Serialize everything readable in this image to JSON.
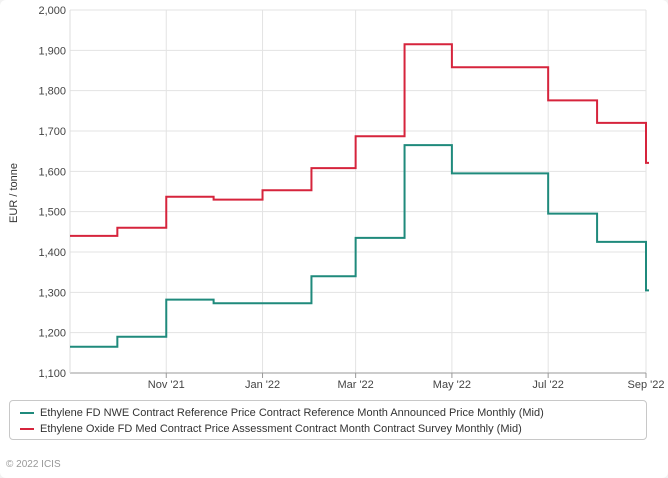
{
  "chart_data": {
    "type": "line",
    "line_shape": "step",
    "ylabel": "EUR / tonne",
    "ylim": [
      1100,
      2000
    ],
    "y_ticks": [
      1100,
      1200,
      1300,
      1400,
      1500,
      1600,
      1700,
      1800,
      1900,
      2000
    ],
    "y_tick_labels": [
      "1,100",
      "1,200",
      "1,300",
      "1,400",
      "1,500",
      "1,600",
      "1,700",
      "1,800",
      "1,900",
      "2,000"
    ],
    "x_ticks": [
      "2021-11-01",
      "2022-01-01",
      "2022-03-01",
      "2022-05-01",
      "2022-07-01",
      "2022-09-01"
    ],
    "x_tick_labels": [
      "Nov '21",
      "Jan '22",
      "Mar '22",
      "May '22",
      "Jul '22",
      "Sep '22"
    ],
    "xlim": [
      "2021-09-01",
      "2022-09-01"
    ],
    "grid": true,
    "legend_position": "bottom",
    "series": [
      {
        "name": "Ethylene FD NWE Contract Reference Price Contract Reference Month Announced Price Monthly (Mid)",
        "color": "#1f8a7c",
        "points": [
          [
            "2021-09-01",
            1165
          ],
          [
            "2021-10-01",
            1190
          ],
          [
            "2021-11-01",
            1282
          ],
          [
            "2021-12-01",
            1273
          ],
          [
            "2022-01-01",
            1273
          ],
          [
            "2022-02-01",
            1340
          ],
          [
            "2022-03-01",
            1435
          ],
          [
            "2022-04-01",
            1665
          ],
          [
            "2022-05-01",
            1595
          ],
          [
            "2022-06-01",
            1595
          ],
          [
            "2022-07-01",
            1495
          ],
          [
            "2022-08-01",
            1425
          ],
          [
            "2022-09-01",
            1305
          ]
        ]
      },
      {
        "name": "Ethylene Oxide FD Med Contract Price Assessment Contract Month Contract Survey Monthly (Mid)",
        "color": "#d6243c",
        "points": [
          [
            "2021-09-01",
            1440
          ],
          [
            "2021-10-01",
            1460
          ],
          [
            "2021-11-01",
            1537
          ],
          [
            "2021-12-01",
            1530
          ],
          [
            "2022-01-01",
            1553
          ],
          [
            "2022-02-01",
            1608
          ],
          [
            "2022-03-01",
            1687
          ],
          [
            "2022-04-01",
            1915
          ],
          [
            "2022-05-01",
            1858
          ],
          [
            "2022-06-01",
            1858
          ],
          [
            "2022-07-01",
            1776
          ],
          [
            "2022-08-01",
            1720
          ],
          [
            "2022-09-01",
            1621
          ]
        ]
      }
    ]
  },
  "footer": {
    "copyright": "© 2022 ICIS"
  }
}
